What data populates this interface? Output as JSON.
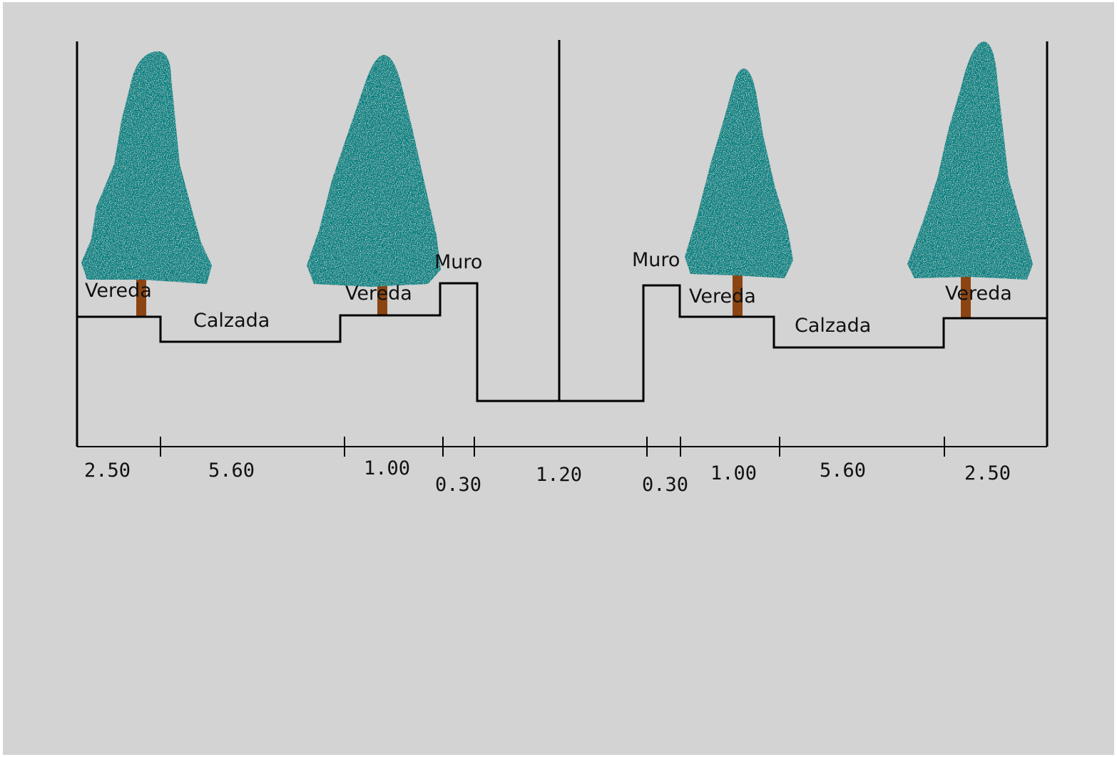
{
  "colors": {
    "background": "#d3d3d3",
    "line": "#000000",
    "foliage": "#008080",
    "trunk": "#8b4513"
  },
  "icons": {
    "tree": "tree-icon"
  },
  "labels": {
    "vereda_left_outer": "Vereda",
    "calzada_left": "Calzada",
    "vereda_left_inner": "Vereda",
    "muro_left": "Muro",
    "muro_right": "Muro",
    "vereda_right_inner": "Vereda",
    "calzada_right": "Calzada",
    "vereda_right_outer": "Vereda"
  },
  "dimensions": [
    {
      "value": "2.50"
    },
    {
      "value": "5.60"
    },
    {
      "value": "1.00"
    },
    {
      "value": "0.30"
    },
    {
      "value": "1.20"
    },
    {
      "value": "0.30"
    },
    {
      "value": "1.00"
    },
    {
      "value": "5.60"
    },
    {
      "value": "2.50"
    }
  ]
}
